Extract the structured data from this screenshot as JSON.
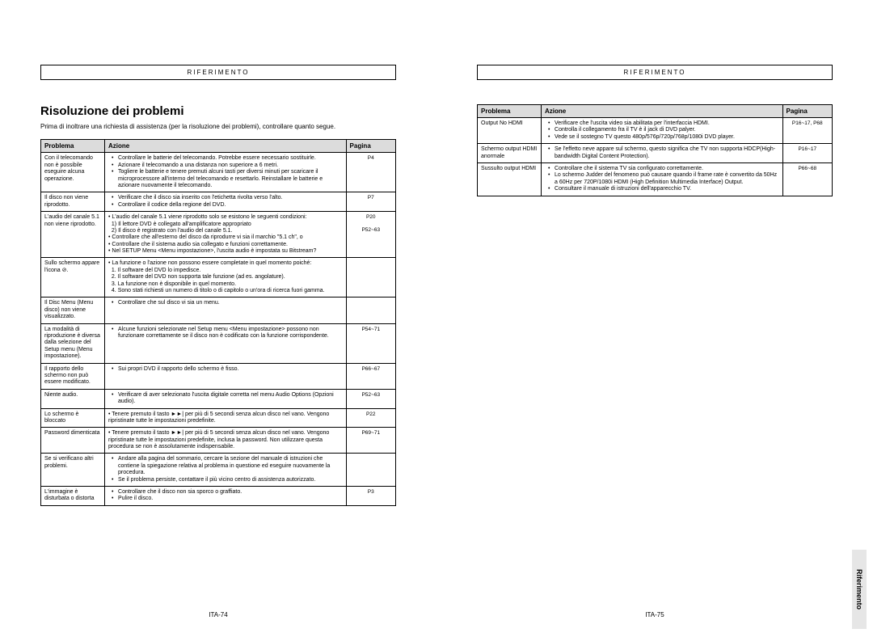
{
  "header": "RIFERIMENTO",
  "title": "Risoluzione dei problemi",
  "intro": "Prima di inoltrare una richiesta di assistenza (per la risoluzione dei problemi), controllare quanto segue.",
  "columns": {
    "prob": "Problema",
    "act": "Azione",
    "pag": "Pagina"
  },
  "side_tab": "Riferimento",
  "footer_left": "ITA-74",
  "footer_right": "ITA-75",
  "left_rows": [
    {
      "prob": "Con il telecomando non è possibile eseguire alcuna operazione.",
      "act": [
        "Controllare le batterie del telecomando. Potrebbe essere necessario sostituirle.",
        "Azionare il telecomando a una distanza non superiore a 6 metri.",
        "Togliere le batterie e tenere premuti alcuni tasti per diversi minuti per scaricare il microprocessore all'interno del telecomando e resettarlo. Reinstallare le batterie e azionare nuovamente il telecomando."
      ],
      "pag": "P4"
    },
    {
      "prob": "Il disco non viene riprodotto.",
      "act": [
        "Verificare che il disco sia inserito con l'etichetta rivolta verso l'alto.",
        "Controllare il codice della regione del DVD."
      ],
      "pag": "P7"
    },
    {
      "prob": "L'audio del canale 5.1 non viene riprodotto.",
      "act_html": "• L'audio del canale 5.1 viene riprodotto solo se esistono le seguenti condizioni:<br>&nbsp;&nbsp;1) Il lettore DVD è collegato all'amplificatore appropriato<br>&nbsp;&nbsp;2) Il disco è registrato con l'audio del canale 5.1.<br>• Controllare che all'esterno del disco da riprodurre vi sia il marchio \"5.1 ch\", o<br>• Controllare che il sistema audio sia collegato e funzioni correttamente.<br>• Nel SETUP Menu &lt;Menu impostazione&gt;, l'uscita audio è impostata su Bitstream?",
      "pag": "P20<br><br>P52~63"
    },
    {
      "prob": "Sullo schermo appare l'icona ⊘.",
      "act_html": "• La funzione o l'azione non possono essere completate in quel momento poiché:<br>&nbsp;&nbsp;1. Il software del DVD lo impedisce.<br>&nbsp;&nbsp;2. Il software del DVD non supporta tale funzione (ad es. angolature).<br>&nbsp;&nbsp;3. La funzione non è disponibile in quel momento.<br>&nbsp;&nbsp;4. Sono stati richiesti un numero di titolo o di capitolo o un'ora di ricerca fuori gamma.",
      "pag": ""
    },
    {
      "prob": "Il Disc Menu (Menu disco) non viene visualizzato.",
      "act": [
        "Controllare che sul disco vi sia un menu."
      ],
      "pag": ""
    },
    {
      "prob": "La modalità di riproduzione è diversa dalla selezione del Setup menu (Menu impostazione).",
      "act": [
        "Alcune funzioni selezionate nel Setup menu <Menu impostazione> possono non funzionare correttamente se il disco non è codificato con la funzione corrispondente."
      ],
      "pag": "P54~71"
    },
    {
      "prob": "Il rapporto dello schermo non può essere modificato.",
      "act": [
        "Sui propri DVD il rapporto dello schermo è fisso."
      ],
      "pag": "P66~67"
    },
    {
      "prob": "Niente audio.",
      "act": [
        "Verificare di aver selezionato l'uscita digitale corretta nel menu Audio Options (Opzioni audio)."
      ],
      "pag": "P52~63"
    },
    {
      "prob": "Lo schermo è bloccato",
      "act_html": "• Tenere premuto il tasto ►►| per più di 5 secondi senza alcun disco nel vano. Vengono ripristinate tutte le impostazioni predefinite.",
      "pag": "P22"
    },
    {
      "prob": "Password dimenticata",
      "act_html": "• Tenere premuto il tasto ►►| per più di 5 secondi senza alcun disco nel vano. Vengono ripristinate tutte le impostazioni predefinite, inclusa la password. Non utilizzare questa procedura se non è assolutamente indispensabile.",
      "pag": "P69~71"
    },
    {
      "prob": "Se si verificano altri problemi.",
      "act": [
        "Andare alla pagina del sommario, cercare la sezione del manuale di istruzioni che contiene la spiegazione relativa al problema in questione ed eseguire nuovamente la procedura.",
        "Se il problema persiste, contattare il più vicino centro di assistenza autorizzato."
      ],
      "pag": ""
    },
    {
      "prob": "L'immagine è disturbata o distorta",
      "act": [
        "Controllare che il disco non sia sporco o graffiato.",
        "Pulire il disco."
      ],
      "pag": "P3"
    }
  ],
  "right_rows": [
    {
      "prob": "Output No HDMI",
      "act": [
        "Verificare che l'uscita video sia abilitata per l'interfaccia HDMI.",
        "Controlla il collegamento fra il TV è il jack di DVD palyer.",
        "Vede se il sostegno TV questo 480p/576p/720p/768p/1080i DVD player."
      ],
      "pag": "P16~17, P68"
    },
    {
      "prob": "Schermo output HDMI anormale",
      "act": [
        "Se l'effetto neve appare sul schermo, questo significa che TV non supporta HDCP(High-bandwidth Digital Content Protection)."
      ],
      "pag": "P16~17"
    },
    {
      "prob": "Sussulto output HDMI",
      "act": [
        "Controllare che il sistema TV sia configurato correttamente.",
        "Lo schermo Judder del fenomeno può causare quando il frame rate è convertito da 50Hz a 60Hz per 720P/1080i HDMI (High Definition Multimedia Interface) Output.",
        "Consultare il manuale di istruzioni dell'apparecchio TV."
      ],
      "pag": "P66~68"
    }
  ]
}
